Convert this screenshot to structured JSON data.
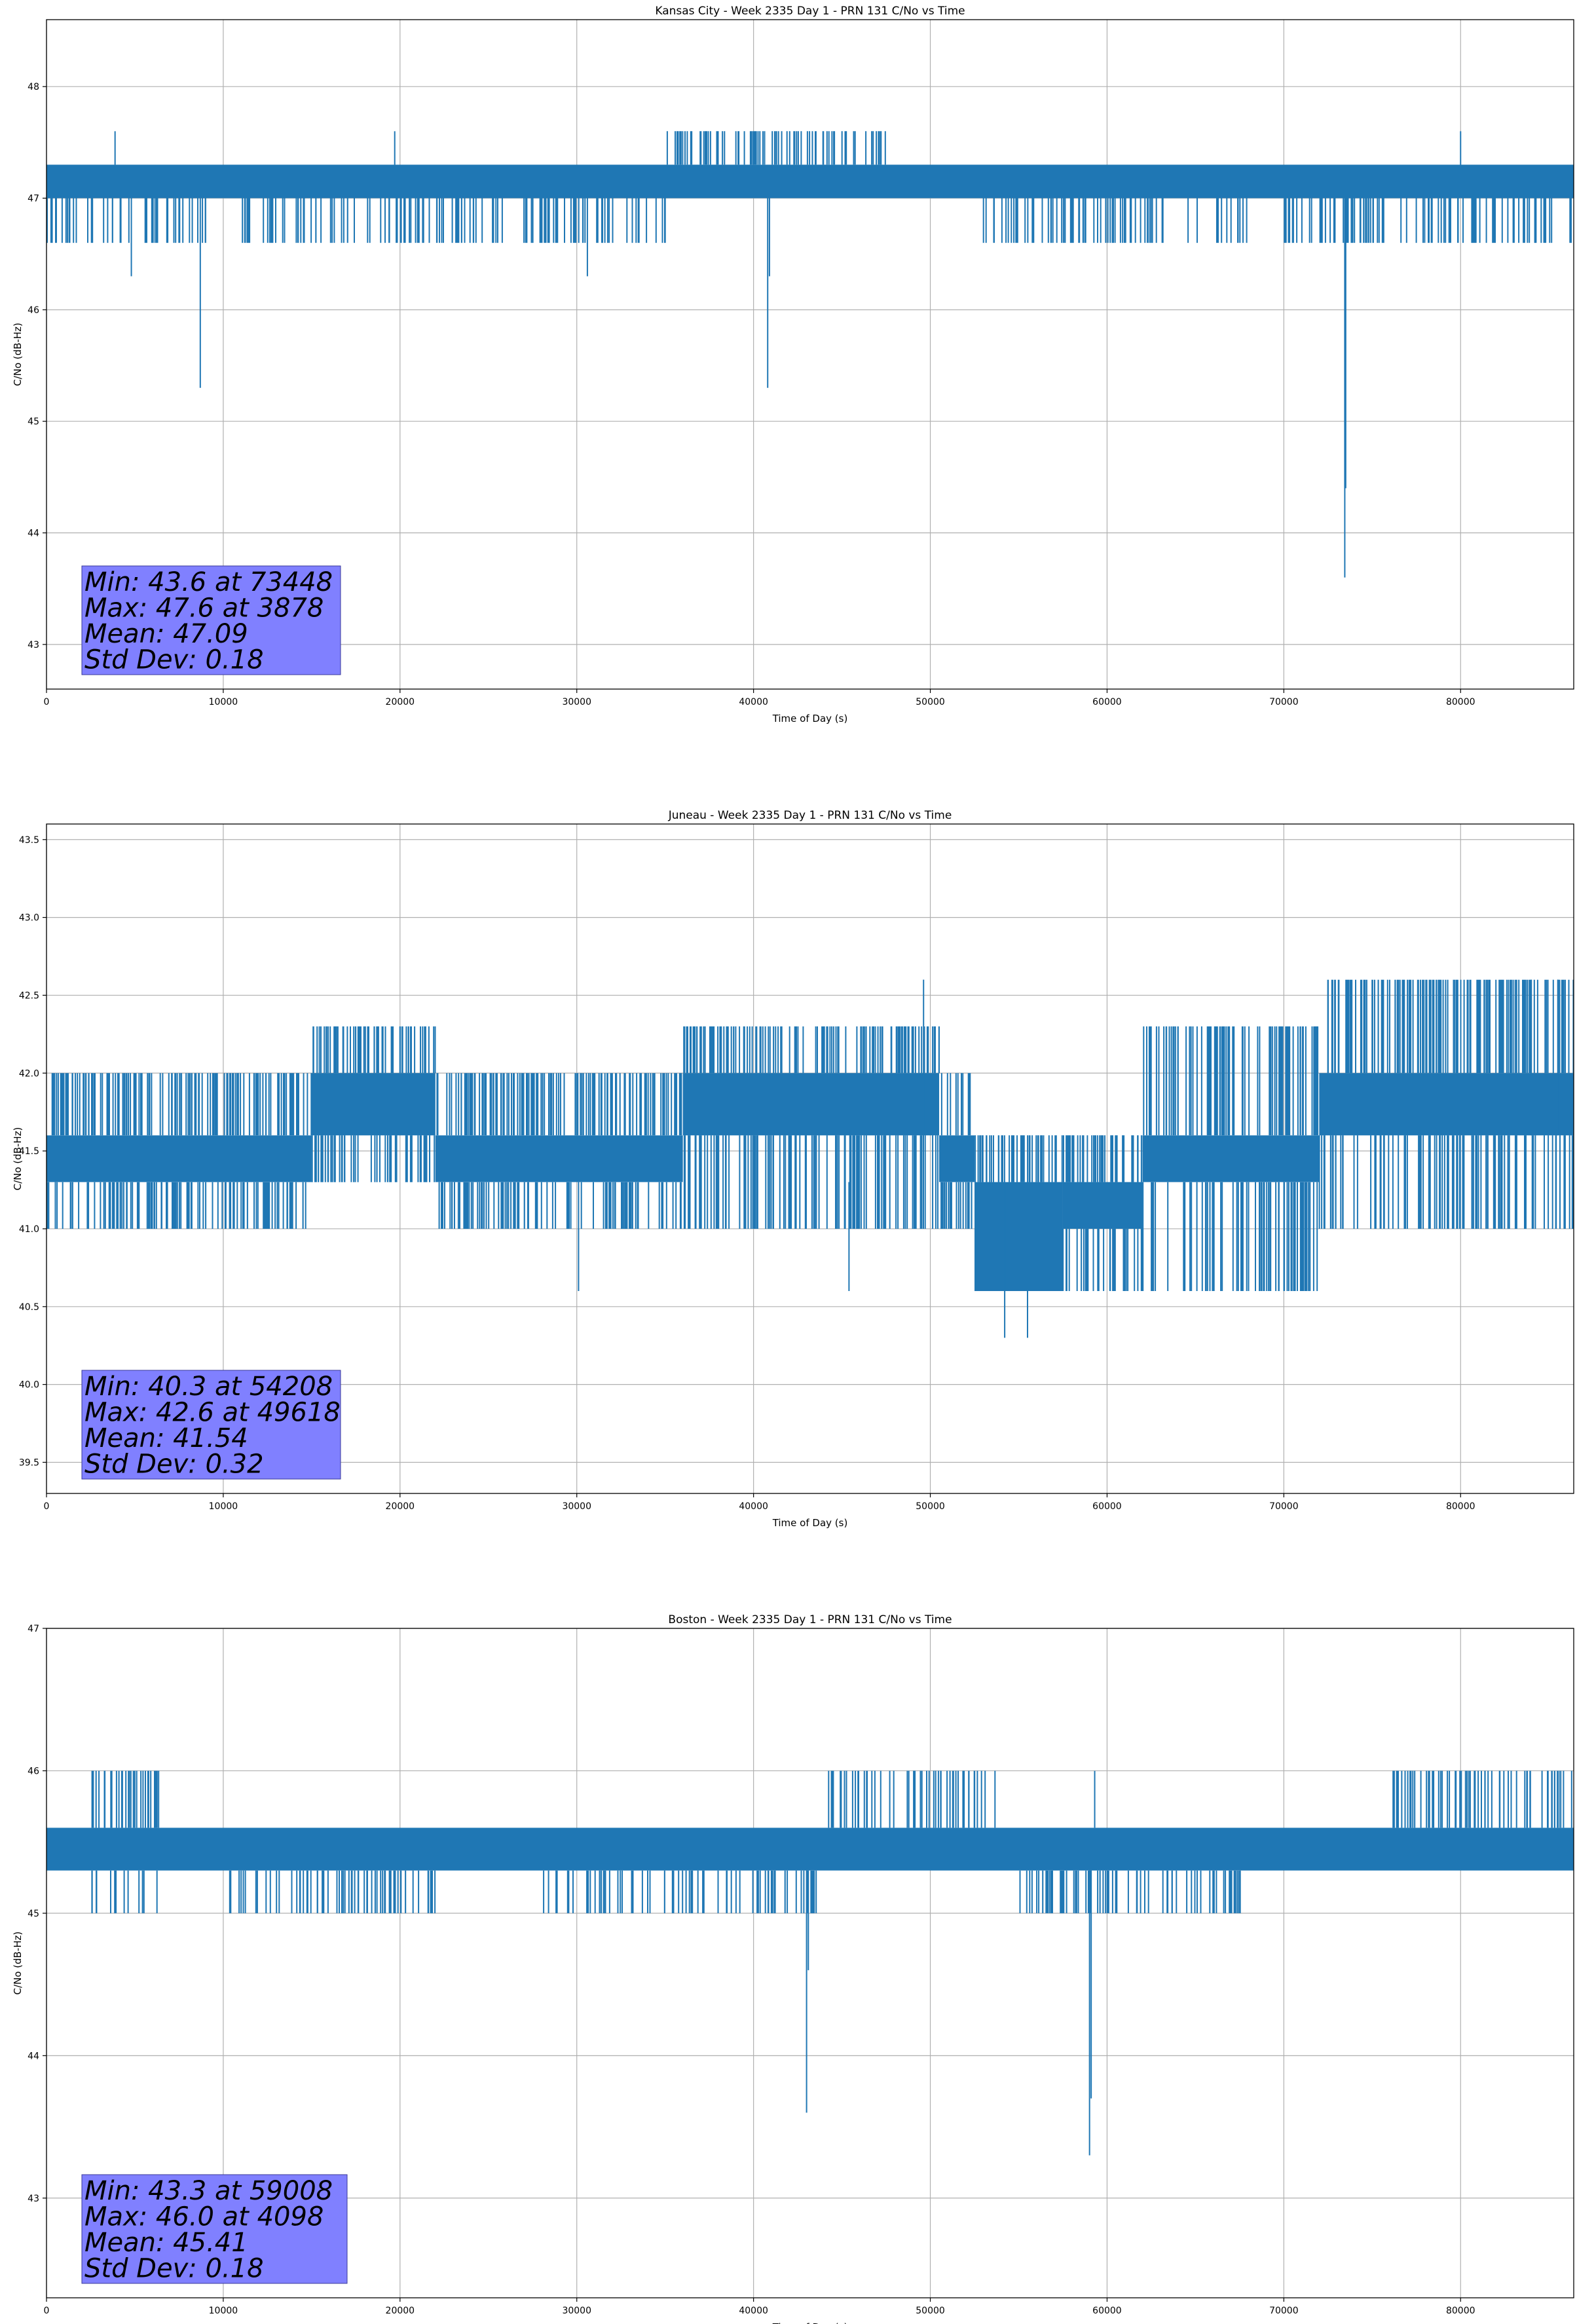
{
  "chart_data": [
    {
      "type": "line",
      "title": "Kansas City - Week 2335 Day 1 - PRN 131 C/No vs Time",
      "xlabel": "Time of Day (s)",
      "ylabel": "C/No (dB-Hz)",
      "xlim": [
        0,
        86400
      ],
      "ylim": [
        42.6,
        48.6
      ],
      "xticks": [
        0,
        10000,
        20000,
        30000,
        40000,
        50000,
        60000,
        70000,
        80000
      ],
      "yticks": [
        43,
        44,
        45,
        46,
        47,
        48
      ],
      "ytick_decimals": 0,
      "grid": true,
      "series_color": "#1f77b4",
      "band": {
        "low": 47.0,
        "high": 47.3
      },
      "dense_regions": [
        {
          "x": [
            0,
            9000
          ],
          "low": 46.6,
          "high": 47.3
        },
        {
          "x": [
            10500,
            20000
          ],
          "low": 46.6,
          "high": 47.3
        },
        {
          "x": [
            20000,
            35000
          ],
          "low": 46.6,
          "high": 47.3
        },
        {
          "x": [
            35000,
            47500
          ],
          "low": 47.0,
          "high": 47.6
        },
        {
          "x": [
            53000,
            68000
          ],
          "low": 46.6,
          "high": 47.3
        },
        {
          "x": [
            70000,
            86400
          ],
          "low": 46.6,
          "high": 47.3
        }
      ],
      "spikes": [
        {
          "x": 3878,
          "y": 47.6
        },
        {
          "x": 4800,
          "y": 46.3
        },
        {
          "x": 8700,
          "y": 45.3
        },
        {
          "x": 19700,
          "y": 47.6
        },
        {
          "x": 30600,
          "y": 46.3
        },
        {
          "x": 40800,
          "y": 45.3
        },
        {
          "x": 40900,
          "y": 46.3
        },
        {
          "x": 73448,
          "y": 43.6
        },
        {
          "x": 73500,
          "y": 44.4
        },
        {
          "x": 80000,
          "y": 47.6
        },
        {
          "x": 84200,
          "y": 46.6
        }
      ],
      "stats": {
        "min": "Min: 43.6 at 73448",
        "max": "Max: 47.6 at 3878",
        "mean": "Mean: 47.09",
        "std": "Std Dev: 0.18"
      }
    },
    {
      "type": "line",
      "title": "Juneau - Week 2335 Day 1 - PRN 131 C/No vs Time",
      "xlabel": "Time of Day (s)",
      "ylabel": "C/No (dB-Hz)",
      "xlim": [
        0,
        86400
      ],
      "ylim": [
        39.3,
        43.6
      ],
      "xticks": [
        0,
        10000,
        20000,
        30000,
        40000,
        50000,
        60000,
        70000,
        80000
      ],
      "yticks": [
        39.5,
        40.0,
        40.5,
        41.0,
        41.5,
        42.0,
        42.5,
        43.0,
        43.5
      ],
      "ytick_decimals": 1,
      "grid": true,
      "series_color": "#1f77b4",
      "segments": [
        {
          "x": [
            0,
            15000
          ],
          "low": 41.3,
          "high": 41.6,
          "noise_low": 41.0,
          "noise_high": 42.0
        },
        {
          "x": [
            15000,
            22000
          ],
          "low": 41.6,
          "high": 42.0,
          "noise_low": 41.3,
          "noise_high": 42.3
        },
        {
          "x": [
            22000,
            36000
          ],
          "low": 41.3,
          "high": 41.6,
          "noise_low": 41.0,
          "noise_high": 42.0
        },
        {
          "x": [
            36000,
            50500
          ],
          "low": 41.6,
          "high": 42.0,
          "noise_low": 41.0,
          "noise_high": 42.3
        },
        {
          "x": [
            50500,
            52500
          ],
          "low": 41.3,
          "high": 41.6,
          "noise_low": 41.0,
          "noise_high": 42.0
        },
        {
          "x": [
            52500,
            57500
          ],
          "low": 40.6,
          "high": 41.3,
          "noise_low": 40.6,
          "noise_high": 41.6
        },
        {
          "x": [
            57500,
            62000
          ],
          "low": 41.0,
          "high": 41.3,
          "noise_low": 40.6,
          "noise_high": 41.6
        },
        {
          "x": [
            62000,
            72000
          ],
          "low": 41.3,
          "high": 41.6,
          "noise_low": 40.6,
          "noise_high": 42.3
        },
        {
          "x": [
            72000,
            86400
          ],
          "low": 41.6,
          "high": 42.0,
          "noise_low": 41.0,
          "noise_high": 42.6
        }
      ],
      "spikes": [
        {
          "x": 500,
          "y": 41.0
        },
        {
          "x": 30100,
          "y": 40.6
        },
        {
          "x": 45400,
          "y": 40.6
        },
        {
          "x": 49618,
          "y": 42.6
        },
        {
          "x": 54208,
          "y": 40.3
        },
        {
          "x": 55500,
          "y": 40.3
        },
        {
          "x": 84000,
          "y": 42.6
        },
        {
          "x": 85500,
          "y": 42.6
        }
      ],
      "stats": {
        "min": "Min: 40.3 at 54208",
        "max": "Max: 42.6 at 49618",
        "mean": "Mean: 41.54",
        "std": "Std Dev: 0.32"
      }
    },
    {
      "type": "line",
      "title": "Boston - Week 2335 Day 1 - PRN 131 C/No vs Time",
      "xlabel": "Time of Day (s)",
      "ylabel": "C/No (dB-Hz)",
      "xlim": [
        0,
        86400
      ],
      "ylim": [
        42.3,
        47.0
      ],
      "xticks": [
        0,
        10000,
        20000,
        30000,
        40000,
        50000,
        60000,
        70000,
        80000
      ],
      "yticks": [
        43,
        44,
        45,
        46,
        47
      ],
      "ytick_decimals": 0,
      "grid": true,
      "series_color": "#1f77b4",
      "band": {
        "low": 45.3,
        "high": 45.6
      },
      "dense_regions": [
        {
          "x": [
            2500,
            6500
          ],
          "low": 45.0,
          "high": 46.0
        },
        {
          "x": [
            10000,
            22000
          ],
          "low": 45.0,
          "high": 45.6
        },
        {
          "x": [
            28000,
            44000
          ],
          "low": 45.0,
          "high": 45.6
        },
        {
          "x": [
            44000,
            54000
          ],
          "low": 45.3,
          "high": 46.0
        },
        {
          "x": [
            55000,
            68000
          ],
          "low": 45.0,
          "high": 45.6
        },
        {
          "x": [
            76000,
            86400
          ],
          "low": 45.3,
          "high": 46.0
        }
      ],
      "spikes": [
        {
          "x": 4098,
          "y": 46.0
        },
        {
          "x": 43000,
          "y": 43.6
        },
        {
          "x": 43100,
          "y": 44.6
        },
        {
          "x": 59008,
          "y": 43.3
        },
        {
          "x": 59100,
          "y": 43.7
        },
        {
          "x": 59300,
          "y": 46.0
        }
      ],
      "stats": {
        "min": "Min: 43.3 at 59008",
        "max": "Max: 46.0 at 4098",
        "mean": "Mean: 45.41",
        "std": "Std Dev: 0.18"
      }
    }
  ]
}
